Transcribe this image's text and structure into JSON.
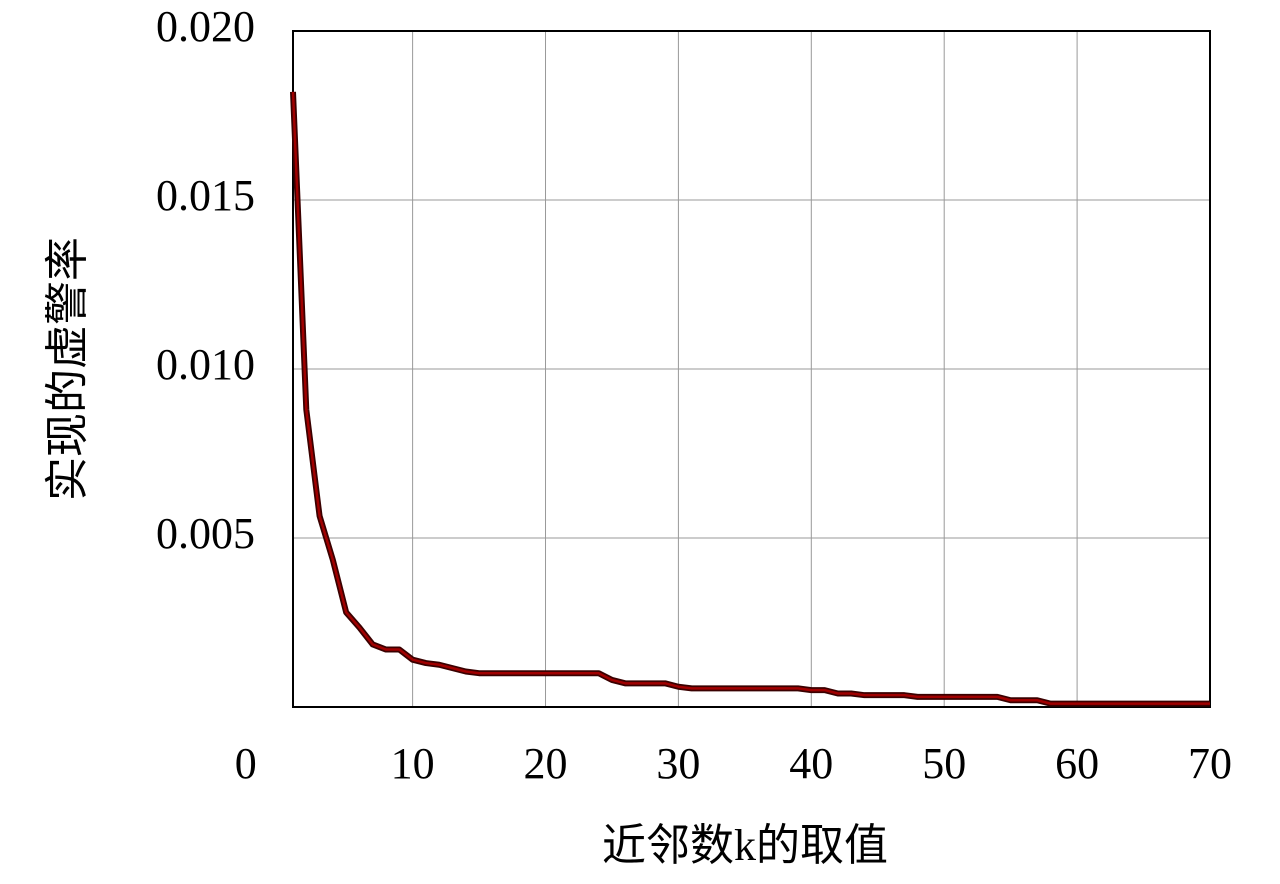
{
  "chart_data": {
    "type": "line",
    "x_label": "近邻数k的取值",
    "y_label": "实现的虚警率",
    "x": [
      1,
      2,
      3,
      4,
      5,
      6,
      7,
      8,
      9,
      10,
      11,
      12,
      13,
      14,
      15,
      16,
      17,
      18,
      19,
      20,
      21,
      22,
      23,
      24,
      25,
      26,
      27,
      28,
      29,
      30,
      31,
      32,
      33,
      34,
      35,
      36,
      37,
      38,
      39,
      40,
      41,
      42,
      43,
      44,
      45,
      46,
      47,
      48,
      49,
      50,
      51,
      52,
      53,
      54,
      55,
      56,
      57,
      58,
      59,
      60,
      61,
      62,
      63,
      64,
      65,
      66,
      67,
      68,
      69,
      70
    ],
    "series": [
      {
        "color": "#a00000",
        "values": [
          0.0182,
          0.0088,
          0.00565,
          0.00435,
          0.0028,
          0.00235,
          0.00185,
          0.0017,
          0.0017,
          0.0014,
          0.0013,
          0.00125,
          0.00115,
          0.00105,
          0.001,
          0.001,
          0.001,
          0.001,
          0.001,
          0.001,
          0.001,
          0.001,
          0.001,
          0.001,
          0.0008,
          0.0007,
          0.0007,
          0.0007,
          0.0007,
          0.0006,
          0.00055,
          0.00055,
          0.00055,
          0.00055,
          0.00055,
          0.00055,
          0.00055,
          0.00055,
          0.00055,
          0.0005,
          0.0005,
          0.0004,
          0.0004,
          0.00035,
          0.00035,
          0.00035,
          0.00035,
          0.0003,
          0.0003,
          0.0003,
          0.0003,
          0.0003,
          0.0003,
          0.0003,
          0.0002,
          0.0002,
          0.0002,
          0.0001,
          0.0001,
          0.0001,
          0.0001,
          0.0001,
          0.0001,
          0.0001,
          0.0001,
          0.0001,
          0.0001,
          0.0001,
          0.0001,
          0.0001
        ]
      }
    ],
    "xlim": [
      1,
      70
    ],
    "xticks": [
      0,
      10,
      20,
      30,
      40,
      50,
      60,
      70
    ],
    "ylim": [
      0,
      0.02
    ],
    "yticks": [
      0.005,
      {
        "value": 0.01,
        "label": "0.010"
      },
      0.015,
      {
        "value": 0.02,
        "label": "0.020"
      }
    ],
    "grid": true
  }
}
